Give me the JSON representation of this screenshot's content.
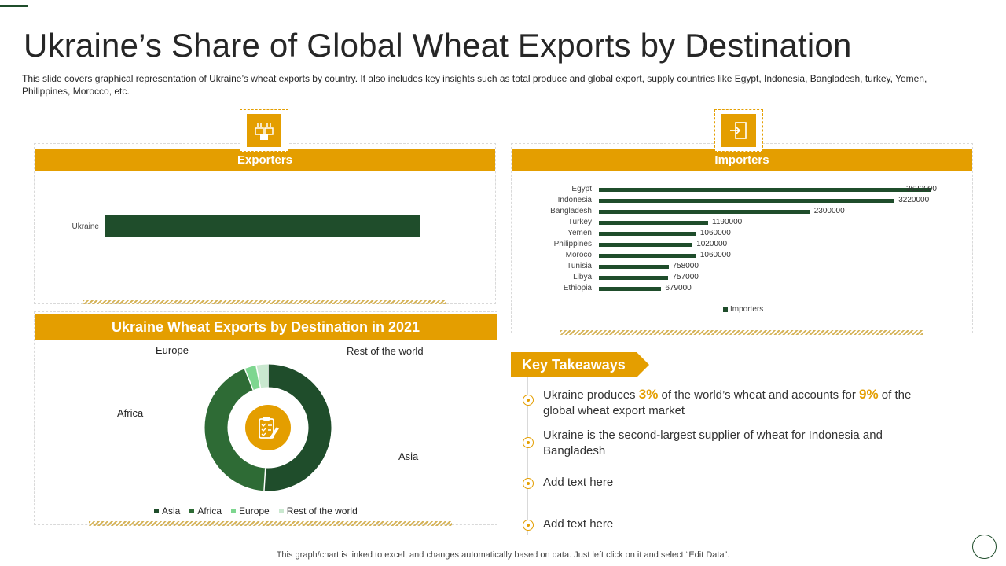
{
  "title": "Ukraine’s Share of Global Wheat Exports by Destination",
  "subtitle": "This slide covers graphical representation of Ukraine’s wheat exports by country. It also includes key insights such as total produce and global export, supply countries like Egypt, Indonesia, Bangladesh, turkey, Yemen, Philippines, Morocco, etc.",
  "colors": {
    "accent": "#e49e00",
    "dark_green": "#1f4d2b",
    "mid_green": "#2e6b35",
    "light_green": "#7dd68f",
    "pale_green": "#c9e8cf"
  },
  "exporters": {
    "header": "Exporters",
    "icon": "boxes-icon",
    "category": "Ukraine"
  },
  "importers": {
    "header": "Importers",
    "icon": "import-icon",
    "legend": "Importers"
  },
  "donut_panel": {
    "header": "Ukraine Wheat Exports by Destination in 2021",
    "center_icon": "clipboard-checklist-icon",
    "labels": {
      "europe": "Europe",
      "rest": "Rest of the world",
      "africa": "Africa",
      "asia": "Asia"
    }
  },
  "chart_data": [
    {
      "type": "bar",
      "orientation": "horizontal",
      "categories": [
        "Ukraine"
      ],
      "values": [
        1
      ],
      "title": "Exporters",
      "data_labels": false,
      "grid": false
    },
    {
      "type": "bar",
      "orientation": "horizontal",
      "title": "Importers",
      "categories": [
        "Egypt",
        "Indonesia",
        "Bangladesh",
        "Turkey",
        "Yemen",
        "Philippines",
        "Moroco",
        "Tunisia",
        "Libya",
        "Ethiopia"
      ],
      "series": [
        {
          "name": "Importers",
          "values": [
            3620000,
            3220000,
            2300000,
            1190000,
            1060000,
            1020000,
            1060000,
            758000,
            757000,
            679000
          ]
        }
      ],
      "value_labels": [
        "3620000",
        "3220000",
        "2300000",
        "1190000",
        "1060000",
        "1020000",
        "1060000",
        "758000",
        "757000",
        "679000"
      ],
      "legend": "bottom",
      "grid": false
    },
    {
      "type": "pie",
      "donut": true,
      "title": "Ukraine Wheat Exports by Destination in 2021",
      "categories": [
        "Asia",
        "Africa",
        "Europe",
        "Rest of the world"
      ],
      "values": [
        51,
        43,
        3,
        3
      ],
      "legend": "bottom"
    }
  ],
  "takeaways": {
    "label": "Key Takeaways",
    "items": [
      {
        "pre": "Ukraine produces ",
        "hl1": "3%",
        "mid": " of the world’s wheat and accounts for ",
        "hl2": "9%",
        "post": " of the global wheat export market"
      },
      {
        "text": "Ukraine is the second-largest supplier of wheat for Indonesia and Bangladesh"
      },
      {
        "text": "Add text here"
      },
      {
        "text": "Add text here"
      }
    ]
  },
  "footer": "This graph/chart is linked to excel, and changes automatically based on data. Just left click on it and select “Edit Data”."
}
